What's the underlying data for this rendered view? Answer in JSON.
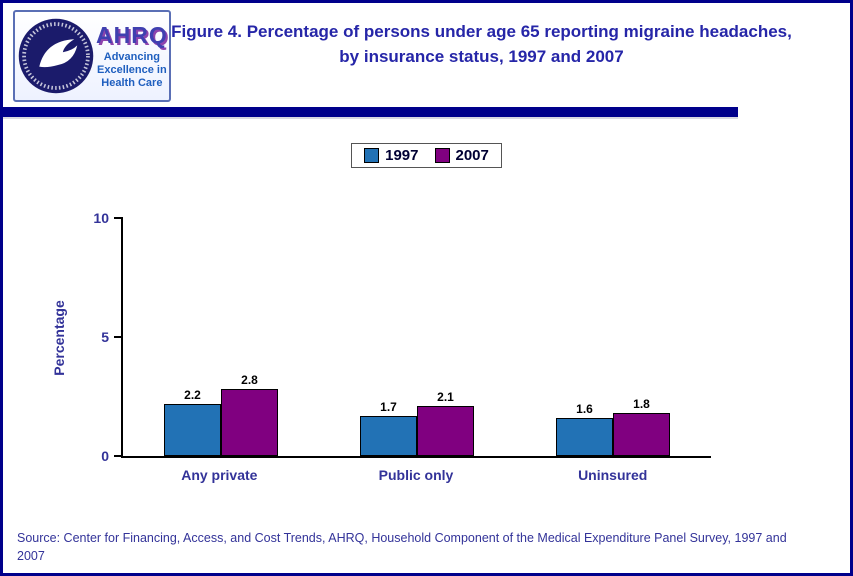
{
  "colors": {
    "page_border": "#00008B",
    "title_text": "#2626A8",
    "axis_label_text": "#333399",
    "bar_1997": "#2272B5",
    "bar_2007": "#800080"
  },
  "header": {
    "logo": {
      "hhs_seal": "hhs-eagle-seal",
      "org_name": "AHRQ",
      "tagline_lines": [
        "Advancing",
        "Excellence in",
        "Health Care"
      ]
    },
    "title_prefix": "Figure 4.",
    "title_rest": " Percentage of persons under age 65 reporting migraine headaches, by insurance status, 1997 and 2007"
  },
  "chart_data": {
    "type": "bar",
    "title": "Figure 4. Percentage of persons under age 65 reporting migraine headaches, by insurance status, 1997 and 2007",
    "categories": [
      "Any private",
      "Public only",
      "Uninsured"
    ],
    "series": [
      {
        "name": "1997",
        "color": "#2272B5",
        "values": [
          2.2,
          1.7,
          1.6
        ]
      },
      {
        "name": "2007",
        "color": "#800080",
        "values": [
          2.8,
          2.1,
          1.8
        ]
      }
    ],
    "xlabel": "",
    "ylabel": "Percentage",
    "ylim": [
      0,
      10
    ],
    "yticks": [
      0,
      5,
      10
    ],
    "grid": false,
    "legend_position": "top-center"
  },
  "source": {
    "text": "Source: Center for Financing, Access, and Cost Trends, AHRQ, Household Component of the Medical Expenditure Panel Survey, 1997 and 2007"
  }
}
